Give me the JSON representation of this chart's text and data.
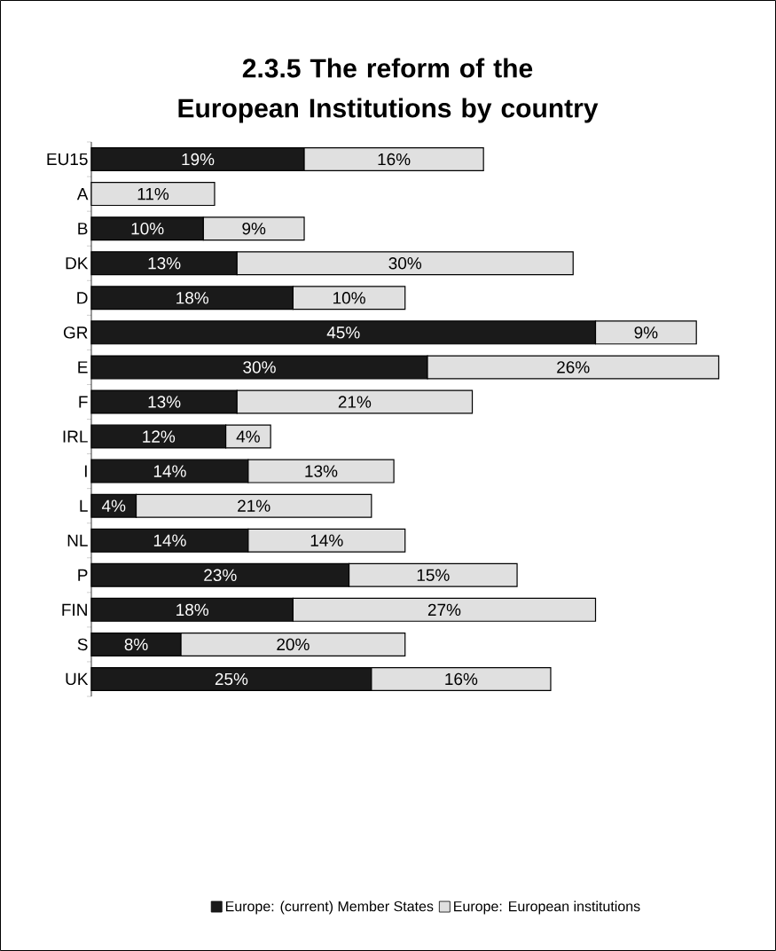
{
  "chart_data": {
    "type": "bar",
    "orientation": "horizontal",
    "stacked": true,
    "title": "2.3.5  The reform of the European Institutions by country",
    "categories": [
      "EU15",
      "A",
      "B",
      "DK",
      "D",
      "GR",
      "E",
      "F",
      "IRL",
      "I",
      "L",
      "NL",
      "P",
      "FIN",
      "S",
      "UK"
    ],
    "series": [
      {
        "name": "Europe: (current) Member States",
        "color": "#1a1a1a",
        "values": [
          19,
          null,
          10,
          13,
          18,
          45,
          30,
          13,
          12,
          14,
          4,
          14,
          23,
          18,
          8,
          25
        ],
        "value_labels": [
          "19%",
          null,
          "10%",
          "13%",
          "18%",
          "45%",
          "30%",
          "13%",
          "12%",
          "14%",
          "4%",
          "14%",
          "23%",
          "18%",
          "8%",
          "25%"
        ]
      },
      {
        "name": "Europe: European institutions",
        "color": "#e0e0e0",
        "values": [
          16,
          11,
          9,
          30,
          10,
          9,
          26,
          21,
          4,
          13,
          21,
          14,
          15,
          27,
          20,
          16
        ],
        "value_labels": [
          "16%",
          "11%",
          "9%",
          "30%",
          "10%",
          "9%",
          "26%",
          "21%",
          "4%",
          "13%",
          "21%",
          "14%",
          "15%",
          "27%",
          "20%",
          "16%"
        ]
      }
    ],
    "legend": "bottom"
  }
}
